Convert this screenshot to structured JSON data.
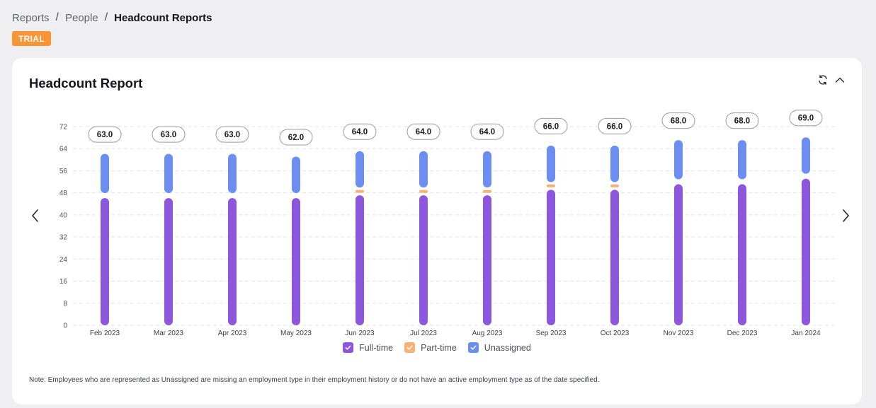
{
  "breadcrumb": {
    "items": [
      "Reports",
      "People"
    ],
    "separator": "/",
    "current": "Headcount Reports"
  },
  "badge": "TRIAL",
  "card": {
    "title": "Headcount Report",
    "icons": [
      "refresh-icon",
      "chevron-up-icon"
    ]
  },
  "nav": {
    "prev_icon": "chevron-left-icon",
    "next_icon": "chevron-right-icon"
  },
  "legend": [
    {
      "label": "Full-time",
      "color": "#8c57dc"
    },
    {
      "label": "Part-time",
      "color": "#f7b27a"
    },
    {
      "label": "Unassigned",
      "color": "#6c8ef1"
    }
  ],
  "note": "Note: Employees who are represented as Unassigned are missing an employment type in their employment history or do not have an active employment type as of the date specified.",
  "chart_data": {
    "type": "bar",
    "stacked": true,
    "categories": [
      "Feb 2023",
      "Mar 2023",
      "Apr 2023",
      "May 2023",
      "Jun 2023",
      "Jul 2023",
      "Aug 2023",
      "Sep 2023",
      "Oct 2023",
      "Nov 2023",
      "Dec 2023",
      "Jan 2024"
    ],
    "series": [
      {
        "name": "Full-time",
        "values": [
          47,
          47,
          47,
          47,
          48,
          48,
          48,
          50,
          50,
          52,
          52,
          54
        ]
      },
      {
        "name": "Part-time",
        "values": [
          0,
          0,
          0,
          0,
          1,
          1,
          1,
          1,
          1,
          0,
          0,
          0
        ]
      },
      {
        "name": "Unassigned",
        "values": [
          16,
          16,
          16,
          15,
          15,
          15,
          15,
          15,
          15,
          16,
          16,
          15
        ]
      }
    ],
    "totals": [
      "63.0",
      "63.0",
      "63.0",
      "62.0",
      "64.0",
      "64.0",
      "64.0",
      "66.0",
      "66.0",
      "68.0",
      "68.0",
      "69.0"
    ],
    "yticks": [
      "0",
      "8",
      "16",
      "24",
      "32",
      "40",
      "48",
      "56",
      "64",
      "72"
    ],
    "ylim": [
      0,
      72
    ],
    "grid": true,
    "legend_position": "bottom"
  }
}
